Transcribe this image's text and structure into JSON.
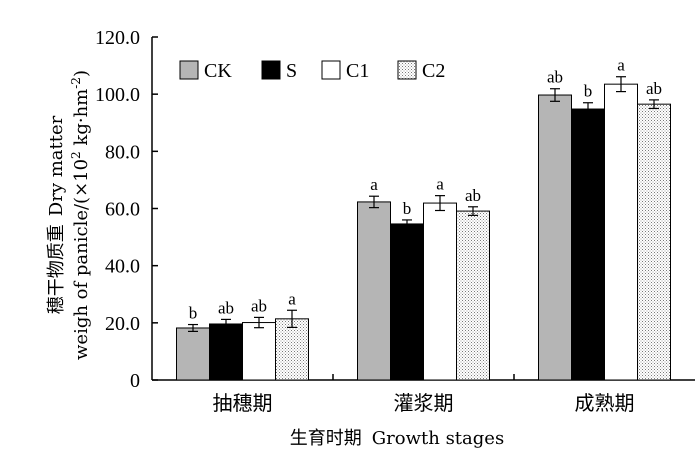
{
  "chart_data": {
    "type": "bar",
    "xlabel_cn": "生育时期",
    "xlabel_en": "Growth stages",
    "ylabel_cn": "穗干物质重",
    "ylabel_en_1": "Dry matter",
    "ylabel_en_2": "weigh of panicle/(×10",
    "ylabel_sup_1": "2",
    "ylabel_en_3": " kg·hm",
    "ylabel_sup_2": "-2",
    "ylabel_en_4": ")",
    "ylim": [
      0,
      120
    ],
    "yticks": [
      "0",
      "20.0",
      "40.0",
      "60.0",
      "80.0",
      "100.0",
      "120.0"
    ],
    "categories": [
      "抽穗期",
      "灌浆期",
      "成熟期"
    ],
    "legend_position": "top-left",
    "series": [
      {
        "name": "CK",
        "fill": "#b5b5b5",
        "pattern": "none",
        "values": [
          18.2,
          62.3,
          99.7
        ],
        "errors": [
          1.2,
          2.0,
          2.2
        ],
        "sig": [
          "b",
          "a",
          "ab"
        ]
      },
      {
        "name": "S",
        "fill": "#000000",
        "pattern": "none",
        "values": [
          19.6,
          54.6,
          94.8
        ],
        "errors": [
          1.6,
          1.4,
          2.2
        ],
        "sig": [
          "ab",
          "b",
          "b"
        ]
      },
      {
        "name": "C1",
        "fill": "#ffffff",
        "pattern": "none",
        "values": [
          20.1,
          61.9,
          103.5
        ],
        "errors": [
          1.8,
          2.6,
          2.6
        ],
        "sig": [
          "ab",
          "a",
          "a"
        ]
      },
      {
        "name": "C2",
        "fill": "#ffffff",
        "pattern": "dots",
        "values": [
          21.4,
          59.1,
          96.5
        ],
        "errors": [
          3.0,
          1.5,
          1.5
        ],
        "sig": [
          "a",
          "ab",
          "ab"
        ]
      }
    ]
  }
}
